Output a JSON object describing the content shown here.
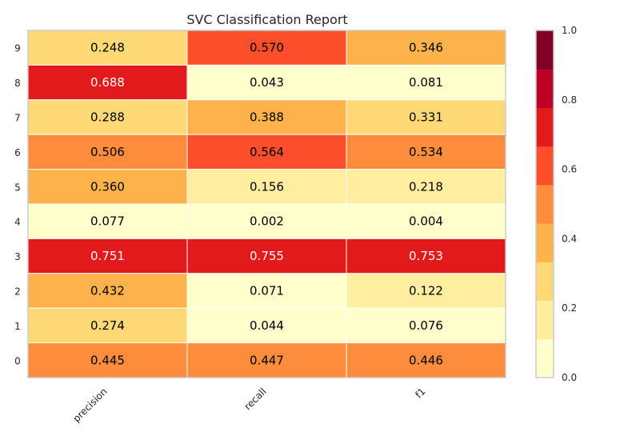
{
  "chart_data": {
    "type": "heatmap",
    "title": "SVC Classification Report",
    "x_categories": [
      "precision",
      "recall",
      "f1"
    ],
    "y_categories": [
      "9",
      "8",
      "7",
      "6",
      "5",
      "4",
      "3",
      "2",
      "1",
      "0"
    ],
    "values": [
      [
        0.248,
        0.57,
        0.346
      ],
      [
        0.688,
        0.043,
        0.081
      ],
      [
        0.288,
        0.388,
        0.331
      ],
      [
        0.506,
        0.564,
        0.534
      ],
      [
        0.36,
        0.156,
        0.218
      ],
      [
        0.077,
        0.002,
        0.004
      ],
      [
        0.751,
        0.755,
        0.753
      ],
      [
        0.432,
        0.071,
        0.122
      ],
      [
        0.274,
        0.044,
        0.076
      ],
      [
        0.445,
        0.447,
        0.446
      ]
    ],
    "labels": [
      [
        "0.248",
        "0.570",
        "0.346"
      ],
      [
        "0.688",
        "0.043",
        "0.081"
      ],
      [
        "0.288",
        "0.388",
        "0.331"
      ],
      [
        "0.506",
        "0.564",
        "0.534"
      ],
      [
        "0.360",
        "0.156",
        "0.218"
      ],
      [
        "0.077",
        "0.002",
        "0.004"
      ],
      [
        "0.751",
        "0.755",
        "0.753"
      ],
      [
        "0.432",
        "0.071",
        "0.122"
      ],
      [
        "0.274",
        "0.044",
        "0.076"
      ],
      [
        "0.445",
        "0.447",
        "0.446"
      ]
    ],
    "vmin": 0.0,
    "vmax": 1.0,
    "colormap": "YlOrRd",
    "colorbar_ticks": [
      "0.0",
      "0.2",
      "0.4",
      "0.6",
      "0.8",
      "1.0"
    ],
    "colorbar_colors": [
      "#ffffcc",
      "#ffeda0",
      "#fed976",
      "#feb24c",
      "#fd8d3c",
      "#fc4e2a",
      "#e31a1c",
      "#bd0026",
      "#800026"
    ],
    "grid": false,
    "legend": "colorbar-right"
  }
}
